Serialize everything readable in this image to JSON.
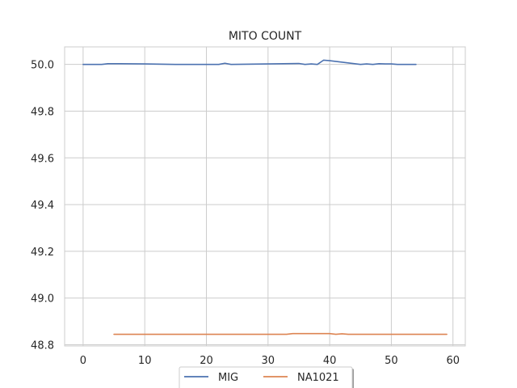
{
  "chart_data": {
    "type": "line",
    "title": "MITO COUNT",
    "xlabel": "",
    "ylabel": "",
    "xlim": [
      -3,
      62
    ],
    "ylim": [
      48.795,
      50.075
    ],
    "xticks": [
      0,
      10,
      20,
      30,
      40,
      50,
      60
    ],
    "yticks": [
      48.8,
      49.0,
      49.2,
      49.4,
      49.6,
      49.8,
      50.0
    ],
    "ytick_labels": [
      "48.8",
      "49.0",
      "49.2",
      "49.4",
      "49.6",
      "49.8",
      "50.0"
    ],
    "grid": true,
    "legend_position": "bottom-center",
    "series": [
      {
        "name": "MIG",
        "color": "#4c72b0",
        "x": [
          0,
          2,
          3,
          4,
          6,
          10,
          15,
          20,
          22,
          23,
          24,
          30,
          35,
          36,
          37,
          38,
          39,
          40,
          45,
          46,
          47,
          48,
          49,
          50,
          51,
          52,
          53,
          54
        ],
        "y": [
          50.0,
          50.0,
          50.0,
          50.003,
          50.003,
          50.002,
          50.0,
          50.0,
          50.0,
          50.005,
          50.0,
          50.002,
          50.004,
          50.0,
          50.002,
          50.0,
          50.018,
          50.016,
          50.0,
          50.002,
          50.0,
          50.003,
          50.002,
          50.002,
          50.0,
          50.0,
          50.0,
          50.0
        ]
      },
      {
        "name": "NA1021",
        "color": "#dd8452",
        "x": [
          5,
          10,
          15,
          20,
          25,
          30,
          33,
          34,
          35,
          40,
          41,
          42,
          43,
          45,
          50,
          55,
          59
        ],
        "y": [
          48.845,
          48.845,
          48.845,
          48.845,
          48.845,
          48.845,
          48.845,
          48.848,
          48.848,
          48.848,
          48.845,
          48.847,
          48.845,
          48.845,
          48.845,
          48.845,
          48.845
        ]
      }
    ]
  }
}
